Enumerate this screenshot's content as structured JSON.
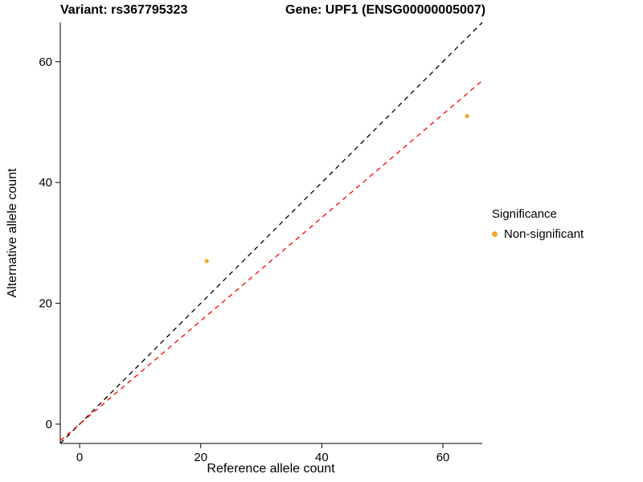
{
  "chart_data": {
    "type": "scatter",
    "title_left": "Variant: rs367795323",
    "title_right": "Gene: UPF1 (ENSG00000005007)",
    "xlabel": "Reference allele count",
    "ylabel": "Alternative allele count",
    "xlim": [
      -3.2,
      66.5
    ],
    "ylim": [
      -3.2,
      66.5
    ],
    "xticks": [
      0,
      20,
      40,
      60
    ],
    "yticks": [
      0,
      20,
      40,
      60
    ],
    "grid": false,
    "points": [
      {
        "x": 21,
        "y": 27
      },
      {
        "x": 64,
        "y": 51
      }
    ],
    "point_color": "#F5A623",
    "lines": [
      {
        "name": "identity-line",
        "slope": 1.0,
        "intercept": 0,
        "color": "#000000",
        "dash": "6,5"
      },
      {
        "name": "fitted-line",
        "slope": 0.855,
        "intercept": 0,
        "color": "#FF0000",
        "dash": "6,5"
      }
    ],
    "legend": {
      "position": "right",
      "title": "Significance",
      "items": [
        {
          "label": "Non-significant",
          "color": "#F5A623"
        }
      ]
    }
  }
}
